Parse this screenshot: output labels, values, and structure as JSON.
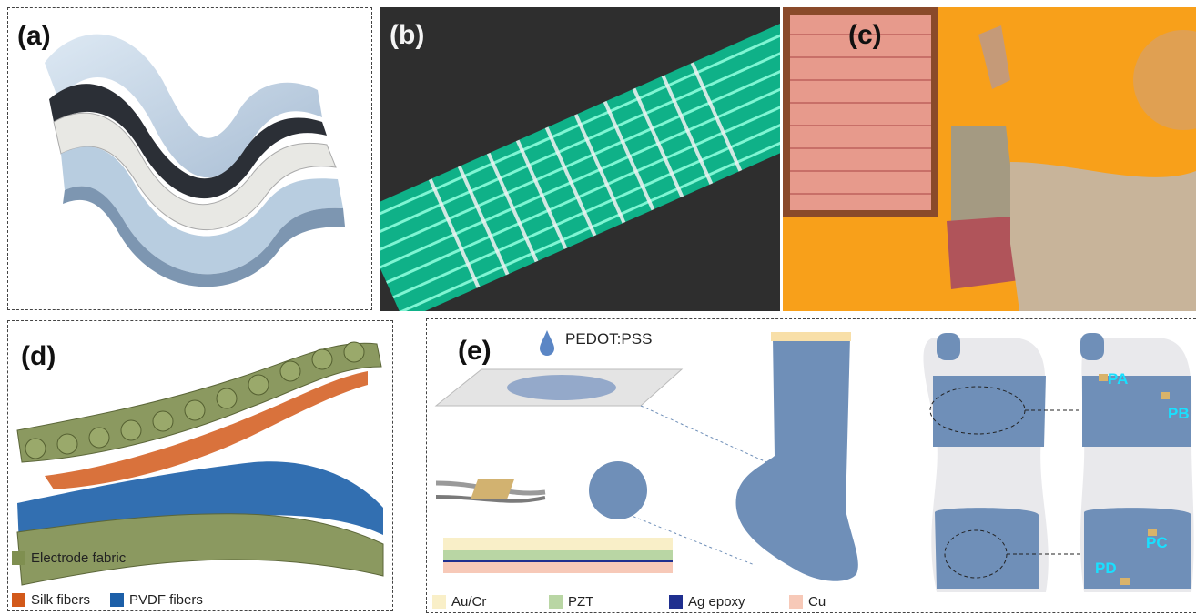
{
  "panels": {
    "a": {
      "label": "(a)"
    },
    "b": {
      "label": "(b)"
    },
    "c": {
      "label": "(c)"
    },
    "d": {
      "label": "(d)",
      "legend": [
        {
          "text": "Electrode fabric",
          "color": "#7f8f50"
        },
        {
          "text": "Silk fibers",
          "color": "#d2591a"
        },
        {
          "text": "PVDF fibers",
          "color": "#1c5fa8"
        }
      ]
    },
    "e": {
      "label": "(e)",
      "pedot_label": "PEDOT:PSS",
      "legend": [
        {
          "text": "Au/Cr",
          "color": "#f9efc8"
        },
        {
          "text": "PZT",
          "color": "#b9d6a4"
        },
        {
          "text": "Ag epoxy",
          "color": "#1f2f8f"
        },
        {
          "text": "Cu",
          "color": "#f7c9b8"
        }
      ],
      "sensors": [
        "PA",
        "PB",
        "PC",
        "PD"
      ]
    }
  },
  "colors": {
    "sock_blue": "#6f8fb8",
    "sensor_text": "#19e0ff",
    "orange_bg": "#f9a21c",
    "green_fiber": "#18c79a"
  }
}
